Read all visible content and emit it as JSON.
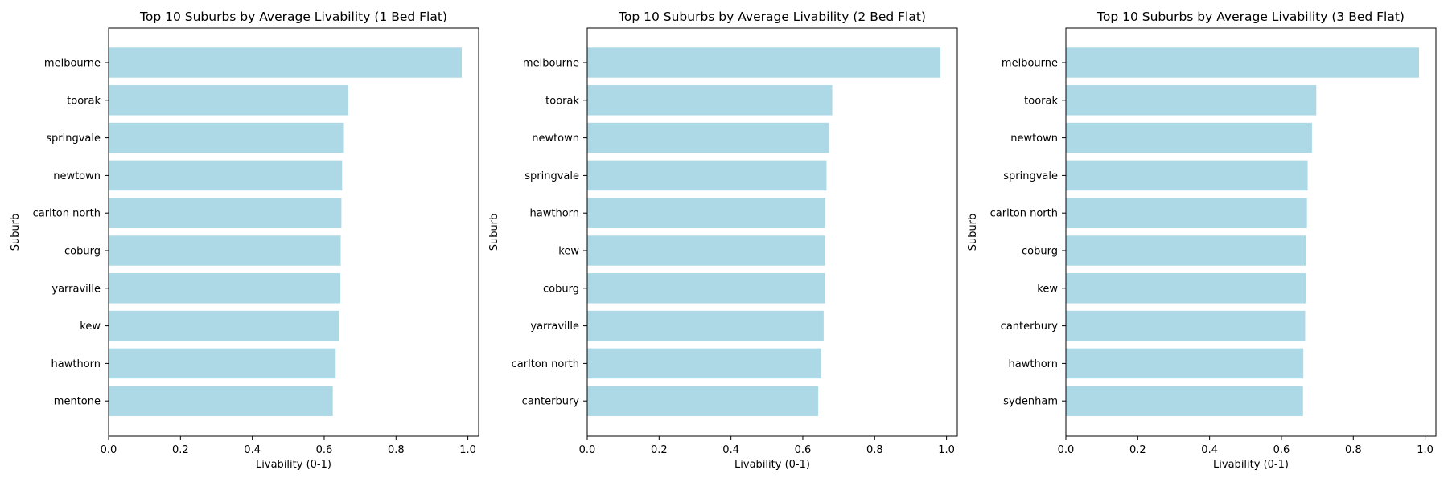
{
  "chart_data": [
    {
      "type": "bar",
      "orientation": "horizontal",
      "title": "Top 10 Suburbs by Average Livability (1 Bed Flat)",
      "xlabel": "Livability (0-1)",
      "ylabel": "Suburb",
      "xlim": [
        0,
        1.03
      ],
      "xticks": [
        "0.0",
        "0.2",
        "0.4",
        "0.6",
        "0.8",
        "1.0"
      ],
      "categories": [
        "melbourne",
        "toorak",
        "springvale",
        "newtown",
        "carlton north",
        "coburg",
        "yarraville",
        "kew",
        "hawthorn",
        "mentone"
      ],
      "values": [
        0.983,
        0.667,
        0.655,
        0.65,
        0.648,
        0.646,
        0.645,
        0.641,
        0.632,
        0.624
      ],
      "color": "#add8e6",
      "grid": false
    },
    {
      "type": "bar",
      "orientation": "horizontal",
      "title": "Top 10 Suburbs by Average Livability (2 Bed Flat)",
      "xlabel": "Livability (0-1)",
      "ylabel": "Suburb",
      "xlim": [
        0,
        1.03
      ],
      "xticks": [
        "0.0",
        "0.2",
        "0.4",
        "0.6",
        "0.8",
        "1.0"
      ],
      "categories": [
        "melbourne",
        "toorak",
        "newtown",
        "springvale",
        "hawthorn",
        "kew",
        "coburg",
        "yarraville",
        "carlton north",
        "canterbury"
      ],
      "values": [
        0.983,
        0.682,
        0.673,
        0.666,
        0.663,
        0.662,
        0.662,
        0.658,
        0.651,
        0.643
      ],
      "color": "#add8e6",
      "grid": false
    },
    {
      "type": "bar",
      "orientation": "horizontal",
      "title": "Top 10 Suburbs by Average Livability (3 Bed Flat)",
      "xlabel": "Livability (0-1)",
      "ylabel": "Suburb",
      "xlim": [
        0,
        1.03
      ],
      "xticks": [
        "0.0",
        "0.2",
        "0.4",
        "0.6",
        "0.8",
        "1.0"
      ],
      "categories": [
        "melbourne",
        "toorak",
        "newtown",
        "springvale",
        "carlton north",
        "coburg",
        "kew",
        "canterbury",
        "hawthorn",
        "sydenham"
      ],
      "values": [
        0.983,
        0.697,
        0.685,
        0.673,
        0.671,
        0.668,
        0.668,
        0.666,
        0.661,
        0.66
      ],
      "color": "#add8e6",
      "grid": false
    }
  ]
}
